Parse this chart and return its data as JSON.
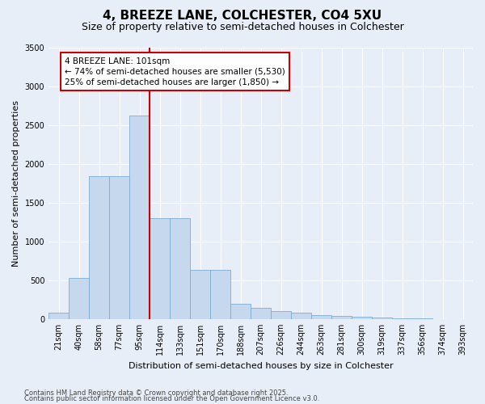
{
  "title1": "4, BREEZE LANE, COLCHESTER, CO4 5XU",
  "title2": "Size of property relative to semi-detached houses in Colchester",
  "xlabel": "Distribution of semi-detached houses by size in Colchester",
  "ylabel": "Number of semi-detached properties",
  "categories": [
    "21sqm",
    "40sqm",
    "58sqm",
    "77sqm",
    "95sqm",
    "114sqm",
    "133sqm",
    "151sqm",
    "170sqm",
    "188sqm",
    "207sqm",
    "226sqm",
    "244sqm",
    "263sqm",
    "281sqm",
    "300sqm",
    "319sqm",
    "337sqm",
    "356sqm",
    "374sqm",
    "393sqm"
  ],
  "bar_heights": [
    80,
    530,
    1840,
    1840,
    2620,
    1300,
    1300,
    630,
    630,
    200,
    140,
    100,
    80,
    50,
    40,
    30,
    15,
    10,
    5,
    3,
    2
  ],
  "bar_color": "#c5d8ed",
  "bar_edge_color": "#7aadd4",
  "vline_color": "#cc0000",
  "annotation_text": "4 BREEZE LANE: 101sqm\n← 74% of semi-detached houses are smaller (5,530)\n25% of semi-detached houses are larger (1,850) →",
  "annotation_box_color": "white",
  "annotation_box_edge": "#cc0000",
  "ylim": [
    0,
    3500
  ],
  "yticks": [
    0,
    500,
    1000,
    1500,
    2000,
    2500,
    3000,
    3500
  ],
  "footer1": "Contains HM Land Registry data © Crown copyright and database right 2025.",
  "footer2": "Contains public sector information licensed under the Open Government Licence v3.0.",
  "bg_color": "#e8eef8",
  "plot_bg_color": "#e8eef8",
  "grid_color": "#ffffff",
  "title1_fontsize": 11,
  "title2_fontsize": 9,
  "ylabel_fontsize": 8,
  "xlabel_fontsize": 8,
  "tick_fontsize": 7,
  "footer_fontsize": 6
}
